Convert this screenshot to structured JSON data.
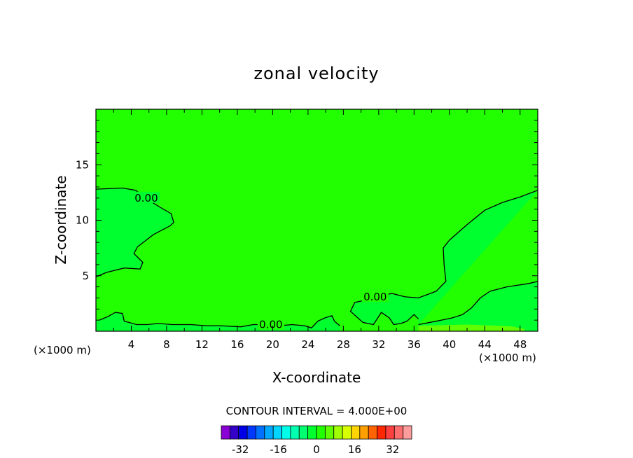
{
  "chart_data": {
    "type": "contour",
    "title": "zonal velocity",
    "xlabel": "X-coordinate",
    "ylabel": "Z-coordinate",
    "x_unit": "(×1000 m)",
    "z_unit": "(×1000 m)",
    "xlim": [
      0,
      50
    ],
    "ylim": [
      0,
      20
    ],
    "x_ticks": [
      4,
      8,
      12,
      16,
      20,
      24,
      28,
      32,
      36,
      40,
      44,
      48
    ],
    "y_ticks": [
      5,
      10,
      15
    ],
    "contour_interval_label": "CONTOUR INTERVAL = 4.000E+00",
    "contour_labels": [
      {
        "text": "0.00",
        "x": 5.7,
        "z": 12.0
      },
      {
        "text": "0.00",
        "x": 31.6,
        "z": 3.1
      },
      {
        "text": "0.00",
        "x": 19.8,
        "z": 0.6
      }
    ],
    "zero_contours": [
      {
        "name": "upper-left",
        "points": [
          [
            0,
            12.8
          ],
          [
            3,
            12.9
          ],
          [
            4.5,
            12.7
          ],
          [
            5.6,
            12.0
          ],
          [
            7.2,
            11.2
          ],
          [
            8.5,
            10.6
          ],
          [
            8.8,
            9.8
          ],
          [
            8.4,
            9.5
          ],
          [
            6.5,
            8.7
          ],
          [
            4.7,
            7.6
          ],
          [
            4.3,
            7.0
          ],
          [
            5.3,
            6.2
          ],
          [
            5.0,
            5.6
          ],
          [
            3.2,
            5.7
          ],
          [
            1.2,
            5.3
          ],
          [
            0,
            4.9
          ]
        ]
      },
      {
        "name": "right-upper",
        "points": [
          [
            50,
            12.7
          ],
          [
            48,
            12.1
          ],
          [
            46,
            11.6
          ],
          [
            44,
            10.9
          ],
          [
            42,
            9.6
          ],
          [
            40,
            8.2
          ],
          [
            39.3,
            7.5
          ],
          [
            39.4,
            6.0
          ],
          [
            39.6,
            4.5
          ],
          [
            38.5,
            3.6
          ],
          [
            36.5,
            3.0
          ],
          [
            35,
            3.1
          ],
          [
            33.5,
            3.4
          ],
          [
            31.6,
            3.1
          ],
          [
            30.5,
            2.8
          ],
          [
            29.3,
            2.6
          ],
          [
            28.8,
            1.8
          ],
          [
            29.5,
            1.3
          ],
          [
            30.2,
            0.8
          ],
          [
            31.4,
            0.6
          ],
          [
            32.3,
            1.7
          ],
          [
            33.2,
            1.2
          ],
          [
            33.7,
            0.6
          ],
          [
            34.5,
            0.7
          ],
          [
            35.2,
            0.9
          ],
          [
            36,
            1.5
          ],
          [
            36.5,
            1.1
          ]
        ]
      },
      {
        "name": "right-lower",
        "points": [
          [
            36.5,
            0.6
          ],
          [
            38.5,
            0.9
          ],
          [
            40.3,
            1.2
          ],
          [
            41.5,
            1.5
          ],
          [
            42.5,
            2.1
          ],
          [
            43.5,
            3.0
          ],
          [
            44.6,
            3.6
          ],
          [
            46.5,
            4.0
          ],
          [
            49,
            4.3
          ],
          [
            50,
            4.5
          ]
        ]
      },
      {
        "name": "bottom-band",
        "points": [
          [
            0.4,
            1.0
          ],
          [
            1.3,
            1.3
          ],
          [
            2.2,
            1.7
          ],
          [
            3.0,
            1.6
          ],
          [
            3.2,
            0.9
          ],
          [
            3.7,
            0.8
          ],
          [
            4.6,
            0.6
          ],
          [
            5.8,
            0.6
          ],
          [
            7.1,
            0.7
          ],
          [
            8.6,
            0.6
          ],
          [
            10.8,
            0.6
          ],
          [
            12.4,
            0.5
          ],
          [
            14.0,
            0.5
          ],
          [
            16.4,
            0.4
          ],
          [
            17.8,
            0.6
          ],
          [
            19.0,
            0.6
          ],
          [
            20.8,
            0.5
          ],
          [
            22.2,
            0.6
          ],
          [
            23.6,
            0.5
          ],
          [
            24.4,
            0.3
          ],
          [
            25.1,
            0.9
          ],
          [
            25.9,
            1.2
          ],
          [
            26.7,
            1.4
          ],
          [
            27.0,
            0.9
          ],
          [
            27.6,
            0.5
          ]
        ]
      }
    ],
    "colorbar": {
      "labels": [
        "-32",
        "-16",
        "0",
        "16",
        "32"
      ],
      "label_values": [
        -32,
        -16,
        0,
        16,
        32
      ],
      "range": [
        -40,
        40
      ],
      "colors": [
        "#8a00d4",
        "#3500c8",
        "#0000e6",
        "#0038ff",
        "#0070ff",
        "#00a8ff",
        "#00d4ff",
        "#00ffe8",
        "#00ffb0",
        "#00ff70",
        "#00ff2f",
        "#22ff00",
        "#60ff00",
        "#a0ff00",
        "#d8ff00",
        "#ffd400",
        "#ffa000",
        "#ff6400",
        "#ff2800",
        "#ff4040",
        "#ff6e6e",
        "#ff9c9c"
      ]
    },
    "fill_colors": {
      "background": "#22ff00",
      "negative_region": "#00ff2f",
      "positive_strip": "#60ff00"
    }
  }
}
